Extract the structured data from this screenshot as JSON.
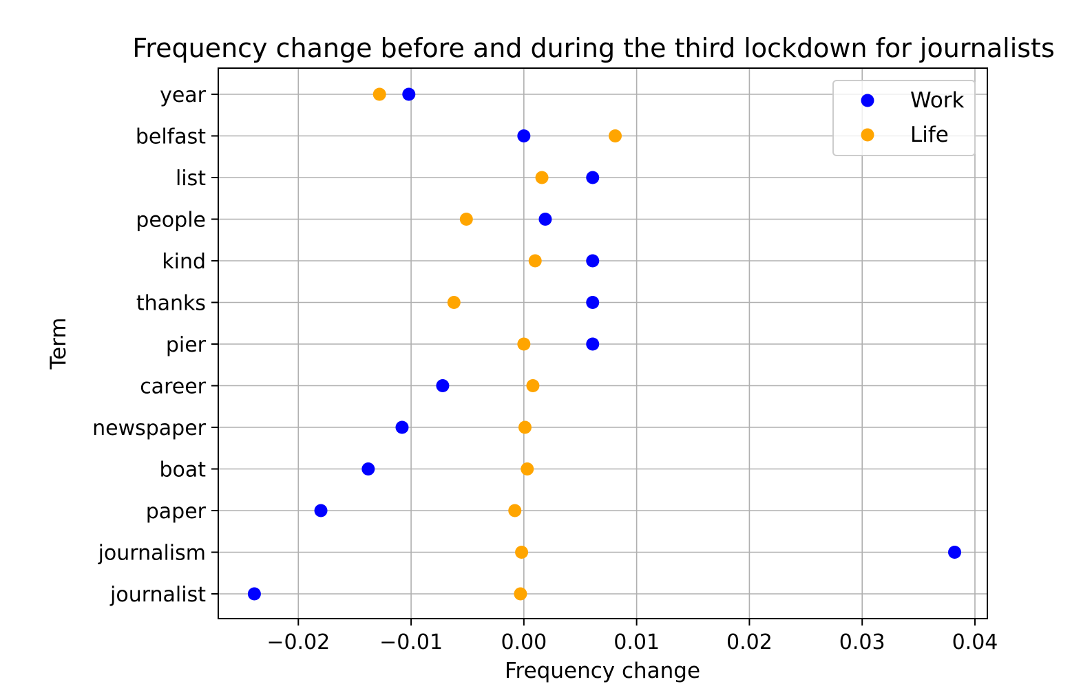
{
  "chart_data": {
    "type": "scatter",
    "title": "Frequency change before and during the third lockdown for journalists",
    "xlabel": "Frequency change",
    "ylabel": "Term",
    "xlim": [
      -0.0271,
      0.0411
    ],
    "x_ticks": [
      -0.02,
      -0.01,
      0.0,
      0.01,
      0.02,
      0.03,
      0.04
    ],
    "x_tick_labels": [
      "−0.02",
      "−0.01",
      "0.00",
      "0.01",
      "0.02",
      "0.03",
      "0.04"
    ],
    "categories": [
      "year",
      "belfast",
      "list",
      "people",
      "kind",
      "thanks",
      "pier",
      "career",
      "newspaper",
      "boat",
      "paper",
      "journalism",
      "journalist"
    ],
    "grid": true,
    "legend_position": "top-right",
    "series": [
      {
        "name": "Work",
        "color": "#0000ff",
        "values": [
          -0.0102,
          0.0,
          0.0061,
          0.0019,
          0.0061,
          0.0061,
          0.0061,
          -0.0072,
          -0.0108,
          -0.0138,
          -0.018,
          0.0382,
          -0.0239
        ]
      },
      {
        "name": "Life",
        "color": "#ffa500",
        "values": [
          -0.0128,
          0.0081,
          0.0016,
          -0.0051,
          0.001,
          -0.0062,
          0.0,
          0.0008,
          0.0001,
          0.0003,
          -0.0008,
          -0.0002,
          -0.0003
        ]
      }
    ]
  }
}
